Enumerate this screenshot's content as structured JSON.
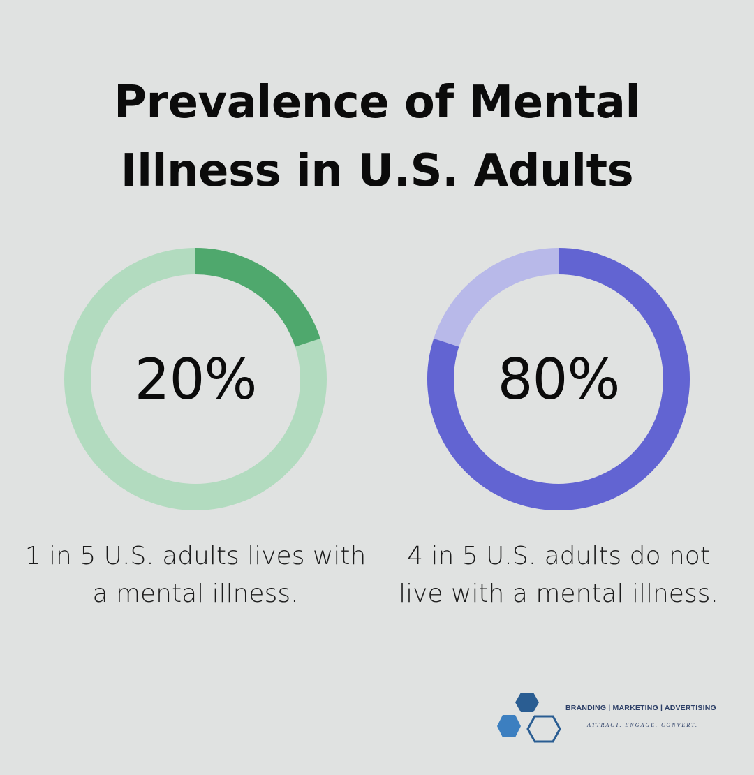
{
  "title_lines": [
    "Prevalence of Mental",
    "Illness in U.S. Adults"
  ],
  "chart_data": [
    {
      "type": "pie",
      "value": 20,
      "label": "20%",
      "caption_lines": [
        "1 in 5 U.S. adults lives with",
        "a mental illness."
      ],
      "colors": {
        "filled": "#4fa86d",
        "track": "#b2dbbf"
      }
    },
    {
      "type": "pie",
      "value": 80,
      "label": "80%",
      "caption_lines": [
        "4 in 5 U.S. adults do not",
        "live with a mental illness."
      ],
      "colors": {
        "filled": "#6264d2",
        "track": "#b8b9e9"
      }
    }
  ],
  "logo": {
    "line1": "BRANDING | MARKETING | ADVERTISING",
    "line2": "ATTRACT. ENGAGE. CONVERT.",
    "colors": {
      "dark": "#2a5d92",
      "light": "#3c7fc0"
    }
  }
}
